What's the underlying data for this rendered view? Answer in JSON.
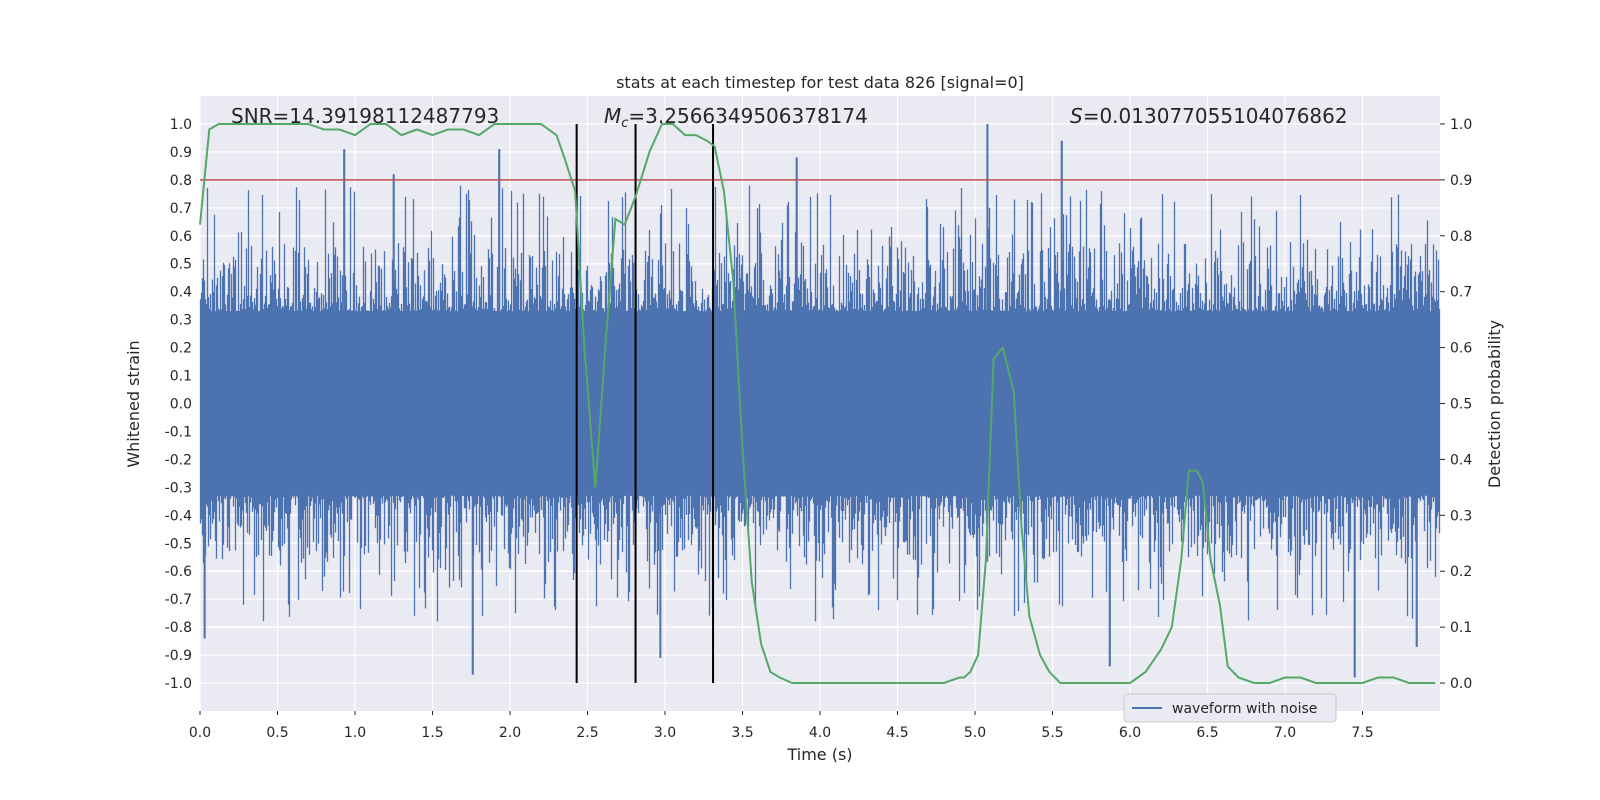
{
  "chart_data": {
    "type": "line",
    "title": "stats at each timestep for test data 826 [signal=0]",
    "xlabel": "Time (s)",
    "ylabel": "Whitened strain",
    "y2label": "Detection probability",
    "xlim": [
      0.0,
      8.0
    ],
    "ylim": [
      -1.1,
      1.1
    ],
    "y2lim": [
      -0.05,
      1.05
    ],
    "xticks": [
      "0.0",
      "0.5",
      "1.0",
      "1.5",
      "2.0",
      "2.5",
      "3.0",
      "3.5",
      "4.0",
      "4.5",
      "5.0",
      "5.5",
      "6.0",
      "6.5",
      "7.0",
      "7.5"
    ],
    "xtick_values": [
      0.0,
      0.5,
      1.0,
      1.5,
      2.0,
      2.5,
      3.0,
      3.5,
      4.0,
      4.5,
      5.0,
      5.5,
      6.0,
      6.5,
      7.0,
      7.5
    ],
    "yticks": [
      "1.0",
      "0.9",
      "0.8",
      "0.7",
      "0.6",
      "0.5",
      "0.4",
      "0.3",
      "0.2",
      "0.1",
      "0.0",
      "-0.1",
      "-0.2",
      "-0.3",
      "-0.4",
      "-0.5",
      "-0.6",
      "-0.7",
      "-0.8",
      "-0.9",
      "-1.0"
    ],
    "ytick_values": [
      1.0,
      0.9,
      0.8,
      0.7,
      0.6,
      0.5,
      0.4,
      0.3,
      0.2,
      0.1,
      0.0,
      -0.1,
      -0.2,
      -0.3,
      -0.4,
      -0.5,
      -0.6,
      -0.7,
      -0.8,
      -0.9,
      -1.0
    ],
    "y2ticks": [
      "1.0",
      "0.9",
      "0.8",
      "0.7",
      "0.6",
      "0.5",
      "0.4",
      "0.3",
      "0.2",
      "0.1",
      "0.0"
    ],
    "y2tick_values": [
      1.0,
      0.9,
      0.8,
      0.7,
      0.6,
      0.5,
      0.4,
      0.3,
      0.2,
      0.1,
      0.0
    ],
    "threshold": 0.9,
    "vlines": [
      2.43,
      2.81,
      3.31
    ],
    "annotations": {
      "snr": "SNR=14.39198112487793",
      "mc_symbol": "M",
      "mc_sub": "c",
      "mc_value": "=3.2566349506378174",
      "s_symbol": "S",
      "s_value": "=0.013077055104076862"
    },
    "series": [
      {
        "name": "waveform with noise",
        "color": "#4c72b0",
        "axis": "left",
        "amplitude_band": 0.33,
        "peaks": [
          {
            "x": 0.93,
            "y": 0.91
          },
          {
            "x": 1.25,
            "y": 0.82
          },
          {
            "x": 1.93,
            "y": 0.91
          },
          {
            "x": 3.85,
            "y": 0.88
          },
          {
            "x": 5.08,
            "y": 1.0
          },
          {
            "x": 5.56,
            "y": 0.94
          },
          {
            "x": 1.76,
            "y": -0.97
          },
          {
            "x": 2.97,
            "y": -0.91
          },
          {
            "x": 5.87,
            "y": -0.94
          },
          {
            "x": 7.45,
            "y": -0.98
          },
          {
            "x": 0.03,
            "y": -0.84
          },
          {
            "x": 7.85,
            "y": -0.87
          }
        ]
      },
      {
        "name": "detection probability",
        "color": "#55a868",
        "axis": "right",
        "x": [
          0.0,
          0.06,
          0.12,
          0.2,
          0.3,
          0.4,
          0.5,
          0.6,
          0.7,
          0.8,
          0.9,
          1.0,
          1.1,
          1.2,
          1.3,
          1.4,
          1.5,
          1.6,
          1.7,
          1.8,
          1.9,
          2.0,
          2.1,
          2.2,
          2.3,
          2.35,
          2.42,
          2.48,
          2.55,
          2.62,
          2.68,
          2.74,
          2.81,
          2.9,
          2.98,
          3.05,
          3.13,
          3.2,
          3.27,
          3.32,
          3.38,
          3.44,
          3.5,
          3.56,
          3.62,
          3.68,
          3.74,
          3.82,
          3.9,
          4.0,
          4.1,
          4.2,
          4.3,
          4.4,
          4.5,
          4.6,
          4.7,
          4.8,
          4.9,
          4.93,
          4.97,
          5.02,
          5.07,
          5.12,
          5.18,
          5.25,
          5.3,
          5.35,
          5.42,
          5.48,
          5.55,
          5.6,
          5.7,
          5.8,
          5.9,
          6.0,
          6.05,
          6.1,
          6.15,
          6.2,
          6.27,
          6.33,
          6.38,
          6.43,
          6.47,
          6.52,
          6.58,
          6.63,
          6.7,
          6.8,
          6.9,
          7.0,
          7.1,
          7.2,
          7.3,
          7.4,
          7.5,
          7.6,
          7.7,
          7.8,
          7.9,
          7.97
        ],
        "y": [
          0.82,
          0.99,
          1.0,
          1.0,
          1.0,
          1.0,
          1.0,
          1.0,
          1.0,
          0.99,
          0.99,
          0.98,
          1.0,
          1.0,
          0.98,
          0.99,
          0.98,
          0.99,
          0.99,
          0.98,
          1.0,
          1.0,
          1.0,
          1.0,
          0.98,
          0.94,
          0.88,
          0.6,
          0.35,
          0.62,
          0.83,
          0.82,
          0.87,
          0.95,
          1.0,
          1.0,
          0.98,
          0.98,
          0.97,
          0.96,
          0.88,
          0.72,
          0.42,
          0.18,
          0.07,
          0.02,
          0.01,
          0.0,
          0.0,
          0.0,
          0.0,
          0.0,
          0.0,
          0.0,
          0.0,
          0.0,
          0.0,
          0.0,
          0.01,
          0.01,
          0.02,
          0.05,
          0.22,
          0.58,
          0.6,
          0.52,
          0.28,
          0.12,
          0.05,
          0.02,
          0.0,
          0.0,
          0.0,
          0.0,
          0.0,
          0.0,
          0.01,
          0.02,
          0.04,
          0.06,
          0.1,
          0.22,
          0.38,
          0.38,
          0.36,
          0.22,
          0.14,
          0.03,
          0.01,
          0.0,
          0.0,
          0.01,
          0.01,
          0.0,
          0.0,
          0.0,
          0.0,
          0.01,
          0.01,
          0.0,
          0.0,
          0.0
        ]
      }
    ],
    "legend": {
      "label": "waveform with noise",
      "position": "lower-right"
    }
  }
}
